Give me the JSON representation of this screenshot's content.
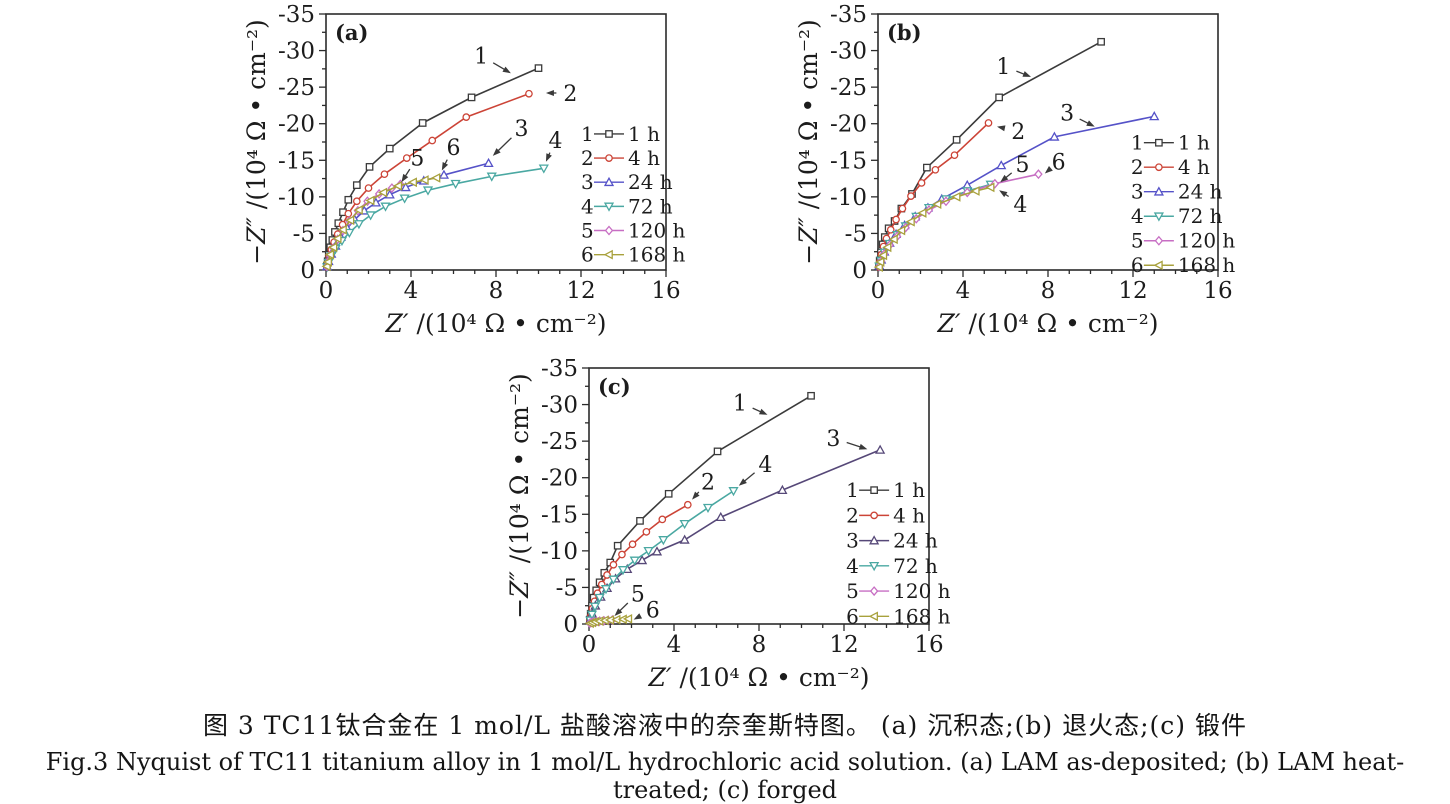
{
  "figure": {
    "caption_zh": "图 3  TC11钛合金在 1 mol/L 盐酸溶液中的奈奎斯特图。 (a) 沉积态;(b) 退火态;(c) 锻件",
    "caption_en": "Fig.3  Nyquist of TC11 titanium alloy in 1 mol/L hydrochloric acid solution. (a) LAM as-deposited; (b) LAM heat-treated; (c) forged"
  },
  "axis_style": {
    "text_color": "#1c1c1c",
    "line_color": "#2b2b2b",
    "arrow_color": "#3a3a3a"
  },
  "chart_data": [
    {
      "type": "line",
      "panel_label": "(a)",
      "xlabel_italic": "Z′",
      "xlabel_rest": " /(10⁴ Ω • cm⁻²)",
      "ylabel_italic": "−Z″",
      "ylabel_rest": " /(10⁴ Ω • cm⁻²)",
      "xlim": [
        0,
        16
      ],
      "ylim": [
        0,
        -35
      ],
      "xticks": [
        0,
        4,
        8,
        12,
        16
      ],
      "xminor": 1,
      "yticks": [
        0,
        -5,
        -10,
        -15,
        -20,
        -25,
        -30,
        -35
      ],
      "yminor": 2.5,
      "legend": {
        "x": 12.0,
        "y": -18.6,
        "dy": 3.3
      },
      "series": [
        {
          "id": "1",
          "label": "1 h",
          "color": "#3b3b3b",
          "marker": "square",
          "x": [
            0.04,
            0.08,
            0.13,
            0.2,
            0.3,
            0.42,
            0.58,
            0.8,
            1.05,
            1.45,
            2.05,
            3.0,
            4.55,
            6.85,
            10.0
          ],
          "y": [
            -0.5,
            -1.2,
            -2.1,
            -3.1,
            -4.1,
            -5.2,
            -6.4,
            -7.9,
            -9.6,
            -11.6,
            -14.1,
            -16.6,
            -20.1,
            -23.6,
            -27.6
          ]
        },
        {
          "id": "2",
          "label": "4 h",
          "color": "#cc4437",
          "marker": "circle",
          "x": [
            0.04,
            0.09,
            0.15,
            0.25,
            0.38,
            0.55,
            0.78,
            1.05,
            1.45,
            2.0,
            2.75,
            3.8,
            5.0,
            6.6,
            9.55
          ],
          "y": [
            -0.4,
            -1.0,
            -1.9,
            -2.8,
            -3.8,
            -4.9,
            -6.2,
            -7.7,
            -9.4,
            -11.2,
            -13.1,
            -15.3,
            -17.7,
            -20.9,
            -24.1
          ]
        },
        {
          "id": "3",
          "label": "24 h",
          "color": "#5552c8",
          "marker": "tri-up",
          "x": [
            0.05,
            0.12,
            0.25,
            0.45,
            0.7,
            1.0,
            1.35,
            1.8,
            2.35,
            3.0,
            3.75,
            4.6,
            5.55,
            7.65
          ],
          "y": [
            -0.5,
            -1.2,
            -2.2,
            -3.3,
            -4.5,
            -5.7,
            -6.9,
            -8.1,
            -9.2,
            -10.3,
            -11.3,
            -12.2,
            -13.0,
            -14.6
          ]
        },
        {
          "id": "4",
          "label": "72 h",
          "color": "#4aa8a2",
          "marker": "tri-down",
          "x": [
            0.05,
            0.12,
            0.25,
            0.45,
            0.75,
            1.1,
            1.55,
            2.1,
            2.8,
            3.7,
            4.8,
            6.1,
            7.8,
            10.25
          ],
          "y": [
            -0.4,
            -1.0,
            -1.9,
            -2.9,
            -4.0,
            -5.1,
            -6.3,
            -7.5,
            -8.7,
            -9.8,
            -10.9,
            -11.8,
            -12.8,
            -13.9
          ]
        },
        {
          "id": "5",
          "label": "120 h",
          "color": "#c76ec3",
          "marker": "diamond",
          "x": [
            0.04,
            0.1,
            0.2,
            0.35,
            0.55,
            0.8,
            1.1,
            1.5,
            1.95,
            2.5,
            3.1,
            3.5
          ],
          "y": [
            -0.5,
            -1.1,
            -2.0,
            -3.0,
            -4.2,
            -5.4,
            -6.7,
            -8.1,
            -9.4,
            -10.4,
            -11.2,
            -11.7
          ]
        },
        {
          "id": "6",
          "label": "168 h",
          "color": "#a8a13c",
          "marker": "tri-left",
          "x": [
            0.04,
            0.1,
            0.2,
            0.35,
            0.55,
            0.8,
            1.15,
            1.55,
            2.1,
            2.7,
            3.4,
            4.1,
            4.65,
            5.2
          ],
          "y": [
            -0.5,
            -1.1,
            -2.1,
            -3.1,
            -4.3,
            -5.5,
            -6.8,
            -8.2,
            -9.5,
            -10.6,
            -11.5,
            -12.0,
            -12.3,
            -12.6
          ]
        }
      ],
      "annotations": [
        {
          "text": "1",
          "x": 7.3,
          "y": -29.3,
          "ax": 8.7,
          "ay": -26.9
        },
        {
          "text": "2",
          "x": 11.5,
          "y": -24.2,
          "ax": 10.35,
          "ay": -24.2
        },
        {
          "text": "3",
          "x": 9.2,
          "y": -19.4,
          "ax": 7.85,
          "ay": -15.6
        },
        {
          "text": "4",
          "x": 10.8,
          "y": -17.8,
          "ax": 10.35,
          "ay": -14.8
        },
        {
          "text": "5",
          "x": 4.3,
          "y": -15.4,
          "ax": 3.55,
          "ay": -12.0
        },
        {
          "text": "6",
          "x": 6.0,
          "y": -16.8,
          "ax": 5.45,
          "ay": -13.6
        }
      ]
    },
    {
      "type": "line",
      "panel_label": "(b)",
      "xlabel_italic": "Z′",
      "xlabel_rest": " /(10⁴ Ω • cm⁻²)",
      "ylabel_italic": "−Z″",
      "ylabel_rest": " /(10⁴ Ω • cm⁻²)",
      "xlim": [
        0,
        16
      ],
      "ylim": [
        0,
        -35
      ],
      "xticks": [
        0,
        4,
        8,
        12,
        16
      ],
      "xminor": 1,
      "yticks": [
        0,
        -5,
        -10,
        -15,
        -20,
        -25,
        -30,
        -35
      ],
      "yminor": 2.5,
      "legend": {
        "x": 11.9,
        "y": -17.4,
        "dy": 3.35
      },
      "series": [
        {
          "id": "1",
          "label": "1 h",
          "color": "#3b3b3b",
          "marker": "square",
          "x": [
            0.04,
            0.08,
            0.14,
            0.22,
            0.32,
            0.5,
            0.78,
            1.1,
            1.6,
            2.3,
            3.7,
            5.7,
            10.5
          ],
          "y": [
            -0.5,
            -1.3,
            -2.4,
            -3.5,
            -4.5,
            -5.7,
            -6.7,
            -8.4,
            -10.4,
            -14.0,
            -17.8,
            -23.6,
            -31.2
          ]
        },
        {
          "id": "2",
          "label": "4 h",
          "color": "#cc4437",
          "marker": "circle",
          "x": [
            0.04,
            0.09,
            0.16,
            0.26,
            0.4,
            0.6,
            0.85,
            1.15,
            1.55,
            2.05,
            2.7,
            3.6,
            5.2
          ],
          "y": [
            -0.4,
            -1.1,
            -2.1,
            -3.2,
            -4.3,
            -5.5,
            -6.9,
            -8.4,
            -10.1,
            -11.9,
            -13.7,
            -15.7,
            -20.1
          ]
        },
        {
          "id": "3",
          "label": "24 h",
          "color": "#5552c8",
          "marker": "tri-up",
          "x": [
            0.06,
            0.15,
            0.3,
            0.55,
            0.85,
            1.25,
            1.75,
            2.35,
            3.0,
            4.2,
            5.8,
            8.3,
            13.0
          ],
          "y": [
            -0.6,
            -1.4,
            -2.5,
            -3.7,
            -4.9,
            -6.1,
            -7.3,
            -8.5,
            -9.7,
            -11.6,
            -14.3,
            -18.2,
            -21.0
          ]
        },
        {
          "id": "4",
          "label": "72 h",
          "color": "#4aa8a2",
          "marker": "tri-down",
          "x": [
            0.06,
            0.15,
            0.3,
            0.55,
            0.9,
            1.3,
            1.8,
            2.4,
            3.2,
            4.2,
            5.3
          ],
          "y": [
            -0.5,
            -1.3,
            -2.4,
            -3.6,
            -4.8,
            -6.0,
            -7.3,
            -8.5,
            -9.7,
            -10.8,
            -11.7
          ]
        },
        {
          "id": "5",
          "label": "120 h",
          "color": "#c76ec3",
          "marker": "diamond",
          "x": [
            0.06,
            0.15,
            0.3,
            0.55,
            0.9,
            1.3,
            1.8,
            2.4,
            3.2,
            4.2,
            5.5,
            7.55
          ],
          "y": [
            -0.5,
            -1.2,
            -2.2,
            -3.4,
            -4.6,
            -5.8,
            -7.0,
            -8.2,
            -9.4,
            -10.6,
            -11.8,
            -13.1
          ]
        },
        {
          "id": "6",
          "label": "168 h",
          "color": "#a8a13c",
          "marker": "tri-left",
          "x": [
            0.05,
            0.12,
            0.25,
            0.45,
            0.75,
            1.1,
            1.55,
            2.1,
            2.8,
            3.7,
            4.6,
            5.3
          ],
          "y": [
            -0.4,
            -1.1,
            -2.0,
            -3.1,
            -4.2,
            -5.4,
            -6.6,
            -7.8,
            -9.0,
            -10.0,
            -10.8,
            -11.3
          ]
        }
      ],
      "annotations": [
        {
          "text": "1",
          "x": 5.9,
          "y": -27.9,
          "ax": 7.2,
          "ay": -26.4
        },
        {
          "text": "2",
          "x": 6.6,
          "y": -19.0,
          "ax": 5.6,
          "ay": -19.6
        },
        {
          "text": "3",
          "x": 8.9,
          "y": -21.5,
          "ax": 10.2,
          "ay": -19.6
        },
        {
          "text": "5",
          "x": 6.8,
          "y": -14.5,
          "ax": 5.75,
          "ay": -12.0
        },
        {
          "text": "6",
          "x": 8.5,
          "y": -14.8,
          "ax": 7.85,
          "ay": -13.2
        },
        {
          "text": "4",
          "x": 6.7,
          "y": -9.0,
          "ax": 5.7,
          "ay": -10.9
        }
      ]
    },
    {
      "type": "line",
      "panel_label": "(c)",
      "xlabel_italic": "Z′",
      "xlabel_rest": " /(10⁴ Ω • cm⁻²)",
      "ylabel_italic": "−Z″",
      "ylabel_rest": " /(10⁴ Ω • cm⁻²)",
      "xlim": [
        0,
        16
      ],
      "ylim": [
        0,
        -35
      ],
      "xticks": [
        0,
        4,
        8,
        12,
        16
      ],
      "xminor": 1,
      "yticks": [
        0,
        -5,
        -10,
        -15,
        -20,
        -25,
        -30,
        -35
      ],
      "yminor": 2.5,
      "legend": {
        "x": 12.1,
        "y": -18.3,
        "dy": 3.45
      },
      "series": [
        {
          "id": "1",
          "label": "1 h",
          "color": "#3b3b3b",
          "marker": "square",
          "x": [
            0.04,
            0.08,
            0.14,
            0.22,
            0.34,
            0.5,
            0.72,
            1.0,
            1.35,
            2.4,
            3.75,
            6.05,
            10.45
          ],
          "y": [
            -0.6,
            -1.4,
            -2.5,
            -3.6,
            -4.6,
            -5.7,
            -7.0,
            -8.4,
            -10.7,
            -14.1,
            -17.8,
            -23.6,
            -31.2
          ]
        },
        {
          "id": "2",
          "label": "4 h",
          "color": "#cc4437",
          "marker": "circle",
          "x": [
            0.04,
            0.09,
            0.16,
            0.26,
            0.4,
            0.6,
            0.85,
            1.15,
            1.55,
            2.05,
            2.7,
            3.45,
            4.65
          ],
          "y": [
            -0.5,
            -1.1,
            -2.1,
            -3.1,
            -4.2,
            -5.4,
            -6.7,
            -8.1,
            -9.5,
            -10.9,
            -12.6,
            -14.3,
            -16.3
          ]
        },
        {
          "id": "3",
          "label": "24 h",
          "color": "#564878",
          "marker": "tri-up",
          "x": [
            0.06,
            0.15,
            0.3,
            0.55,
            0.85,
            1.25,
            1.8,
            2.5,
            3.2,
            4.5,
            6.2,
            9.1,
            13.7
          ],
          "y": [
            -0.6,
            -1.4,
            -2.5,
            -3.7,
            -4.9,
            -6.2,
            -7.5,
            -8.7,
            -9.9,
            -11.5,
            -14.6,
            -18.3,
            -23.8
          ]
        },
        {
          "id": "4",
          "label": "72 h",
          "color": "#4aa8a2",
          "marker": "tri-down",
          "x": [
            0.06,
            0.14,
            0.28,
            0.5,
            0.8,
            1.15,
            1.6,
            2.15,
            2.8,
            3.5,
            4.5,
            5.6,
            6.8
          ],
          "y": [
            -0.5,
            -1.3,
            -2.4,
            -3.6,
            -4.8,
            -6.1,
            -7.4,
            -8.7,
            -10.0,
            -11.5,
            -13.7,
            -15.9,
            -18.2
          ]
        },
        {
          "id": "5",
          "label": "120 h",
          "color": "#c76ec3",
          "marker": "diamond",
          "x": [
            0.04,
            0.1,
            0.2,
            0.35,
            0.5,
            0.7,
            0.9,
            1.1
          ],
          "y": [
            -0.1,
            -0.2,
            -0.3,
            -0.35,
            -0.4,
            -0.45,
            -0.5,
            -0.55
          ]
        },
        {
          "id": "6",
          "label": "168 h",
          "color": "#a8a13c",
          "marker": "tri-left",
          "x": [
            0.05,
            0.15,
            0.3,
            0.5,
            0.75,
            1.0,
            1.3,
            1.6,
            1.85
          ],
          "y": [
            -0.1,
            -0.2,
            -0.3,
            -0.4,
            -0.5,
            -0.55,
            -0.6,
            -0.65,
            -0.7
          ]
        }
      ],
      "annotations": [
        {
          "text": "1",
          "x": 7.1,
          "y": -30.3,
          "ax": 8.4,
          "ay": -28.6
        },
        {
          "text": "3",
          "x": 11.5,
          "y": -25.4,
          "ax": 13.1,
          "ay": -23.9
        },
        {
          "text": "2",
          "x": 5.6,
          "y": -19.5,
          "ax": 4.85,
          "ay": -17.0
        },
        {
          "text": "4",
          "x": 8.3,
          "y": -21.9,
          "ax": 7.05,
          "ay": -18.9
        },
        {
          "text": "5",
          "x": 2.3,
          "y": -4.2,
          "ax": 1.2,
          "ay": -1.1
        },
        {
          "text": "6",
          "x": 3.0,
          "y": -2.0,
          "ax": 2.1,
          "ay": -0.6
        }
      ]
    }
  ]
}
